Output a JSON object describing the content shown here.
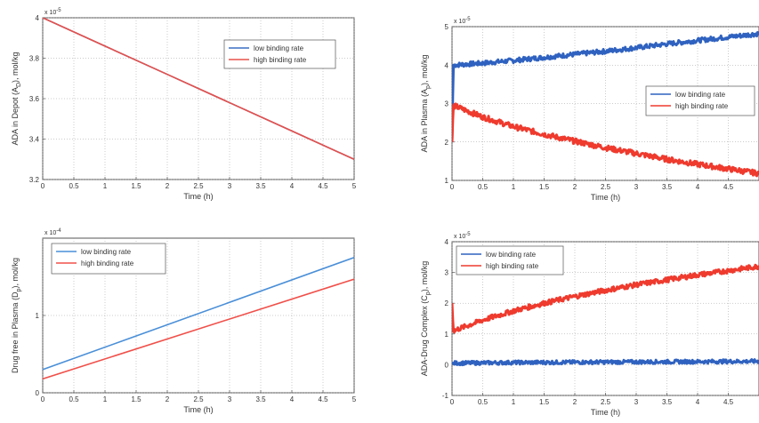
{
  "chart_data": [
    {
      "id": "depot",
      "type": "line",
      "xlabel": "Time (h)",
      "ylabel": "ADA in Depot (A",
      "ylabel_sub": "D",
      "ylabel_tail": "), mol/kg",
      "exponent_base": "x 10",
      "exponent_power": "-5",
      "xlim": [
        0,
        5
      ],
      "ylim": [
        3.2,
        4.0
      ],
      "xticks": [
        0,
        0.5,
        1,
        1.5,
        2,
        2.5,
        3,
        3.5,
        4,
        4.5,
        5
      ],
      "xtick_labels": [
        "0",
        "0.5",
        "1",
        "1.5",
        "2",
        "2.5",
        "3",
        "3.5",
        "4",
        "4.5",
        "5"
      ],
      "yticks": [
        3.2,
        3.4,
        3.6,
        3.8,
        4.0
      ],
      "ytick_labels": [
        "3.2",
        "3.4",
        "3.6",
        "3.8",
        "4"
      ],
      "grid": true,
      "legend_position": "top-right",
      "series": [
        {
          "name": "low binding rate",
          "color": "#3a6fc4",
          "noise": 0,
          "x": [
            0,
            1,
            2,
            3,
            4,
            5
          ],
          "y": [
            4.0,
            3.86,
            3.72,
            3.58,
            3.44,
            3.3
          ]
        },
        {
          "name": "high binding rate",
          "color": "#e8504a",
          "noise": 0,
          "x": [
            0,
            1,
            2,
            3,
            4,
            5
          ],
          "y": [
            4.0,
            3.86,
            3.72,
            3.58,
            3.44,
            3.3
          ]
        }
      ]
    },
    {
      "id": "plasma-ada",
      "type": "line",
      "xlabel": "Time (h)",
      "ylabel": "ADA in Plasma (A",
      "ylabel_sub": "p",
      "ylabel_tail": "), mol/kg",
      "exponent_base": "x 10",
      "exponent_power": "-5",
      "xlim": [
        0,
        5
      ],
      "ylim": [
        1,
        5
      ],
      "xticks": [
        0,
        0.5,
        1,
        1.5,
        2,
        2.5,
        3,
        3.5,
        4,
        4.5
      ],
      "xtick_labels": [
        "0",
        "0.5",
        "1",
        "1.5",
        "2",
        "2.5",
        "3",
        "3.5",
        "4",
        "4.5"
      ],
      "yticks": [
        1,
        2,
        3,
        4,
        5
      ],
      "ytick_labels": [
        "1",
        "2",
        "3",
        "4",
        "5"
      ],
      "grid": true,
      "legend_position": "right",
      "series": [
        {
          "name": "low binding rate",
          "color": "#2f62c0",
          "noise": 0.06,
          "x": [
            0,
            0.02,
            0.5,
            1,
            1.5,
            2,
            2.5,
            3,
            3.5,
            4,
            4.5,
            5
          ],
          "y": [
            2.0,
            4.0,
            4.05,
            4.12,
            4.2,
            4.28,
            4.36,
            4.45,
            4.55,
            4.64,
            4.73,
            4.82
          ]
        },
        {
          "name": "high binding rate",
          "color": "#ef3a2e",
          "noise": 0.07,
          "x": [
            0,
            0.02,
            0.5,
            1,
            1.5,
            2,
            2.5,
            3,
            3.5,
            4,
            4.5,
            5
          ],
          "y": [
            2.0,
            2.95,
            2.65,
            2.4,
            2.2,
            2.02,
            1.85,
            1.7,
            1.55,
            1.42,
            1.3,
            1.18
          ]
        }
      ]
    },
    {
      "id": "plasma-drug",
      "type": "line",
      "xlabel": "Time (h)",
      "ylabel": "Drug free in Plasma (D",
      "ylabel_sub": "p",
      "ylabel_tail": "), mol/kg",
      "exponent_base": "x 10",
      "exponent_power": "-4",
      "xlim": [
        0,
        5
      ],
      "ylim": [
        0,
        2
      ],
      "xticks": [
        0,
        0.5,
        1,
        1.5,
        2,
        2.5,
        3,
        3.5,
        4,
        4.5,
        5
      ],
      "xtick_labels": [
        "0",
        "0.5",
        "1",
        "1.5",
        "2",
        "2.5",
        "3",
        "3.5",
        "4",
        "4.5",
        "5"
      ],
      "yticks": [
        0,
        1
      ],
      "ytick_labels": [
        "0",
        "1"
      ],
      "grid": true,
      "legend_position": "top-left",
      "series": [
        {
          "name": "low binding rate",
          "color": "#4a8fd8",
          "noise": 0,
          "x": [
            0,
            5
          ],
          "y": [
            0.3,
            1.75
          ]
        },
        {
          "name": "high binding rate",
          "color": "#f0504a",
          "noise": 0,
          "x": [
            0,
            5
          ],
          "y": [
            0.18,
            1.47
          ]
        }
      ]
    },
    {
      "id": "complex",
      "type": "line",
      "xlabel": "Time (h)",
      "ylabel": "ADA-Drug Complex (C",
      "ylabel_sub": "p",
      "ylabel_tail": "), mol/kg",
      "exponent_base": "x 10",
      "exponent_power": "-5",
      "xlim": [
        0,
        5
      ],
      "ylim": [
        -1,
        4
      ],
      "xticks": [
        0,
        0.5,
        1,
        1.5,
        2,
        2.5,
        3,
        3.5,
        4,
        4.5
      ],
      "xtick_labels": [
        "0",
        "0.5",
        "1",
        "1.5",
        "2",
        "2.5",
        "3",
        "3.5",
        "4",
        "4.5"
      ],
      "yticks": [
        -1,
        0,
        1,
        2,
        3,
        4
      ],
      "ytick_labels": [
        "-1",
        "0",
        "1",
        "2",
        "3",
        "4"
      ],
      "grid": true,
      "legend_position": "top-left",
      "series": [
        {
          "name": "low binding rate",
          "color": "#2f62c0",
          "noise": 0.06,
          "x": [
            0,
            0.5,
            1,
            2,
            3,
            4,
            5
          ],
          "y": [
            0.05,
            0.06,
            0.07,
            0.08,
            0.09,
            0.1,
            0.11
          ]
        },
        {
          "name": "high binding rate",
          "color": "#ef3a2e",
          "noise": 0.08,
          "x": [
            0,
            0.02,
            0.5,
            1,
            1.5,
            2,
            2.5,
            3,
            3.5,
            4,
            4.5,
            5
          ],
          "y": [
            2.0,
            1.1,
            1.45,
            1.75,
            2.0,
            2.22,
            2.42,
            2.6,
            2.76,
            2.92,
            3.06,
            3.2
          ]
        }
      ]
    }
  ]
}
